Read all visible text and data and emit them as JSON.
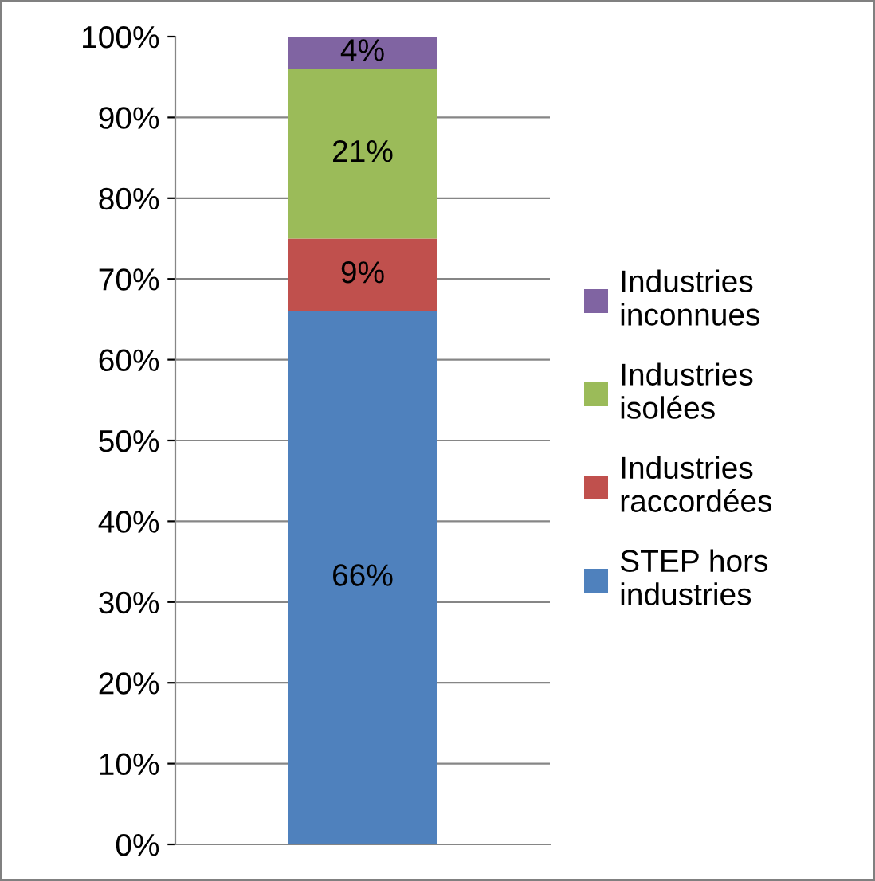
{
  "chart_data": {
    "type": "bar",
    "stacked": true,
    "categories": [
      null
    ],
    "series": [
      {
        "name": "STEP hors industries",
        "color": "#4f81bd",
        "values": [
          66
        ]
      },
      {
        "name": "Industries raccordées",
        "color": "#c0504d",
        "values": [
          9
        ]
      },
      {
        "name": "Industries isolées",
        "color": "#9bbb59",
        "values": [
          21
        ]
      },
      {
        "name": "Industries inconnues",
        "color": "#8064a2",
        "values": [
          4
        ]
      }
    ],
    "ylim": [
      0,
      100
    ],
    "yticks": [
      {
        "value": 0,
        "label": "0%"
      },
      {
        "value": 10,
        "label": "10%"
      },
      {
        "value": 20,
        "label": "20%"
      },
      {
        "value": 30,
        "label": "30%"
      },
      {
        "value": 40,
        "label": "40%"
      },
      {
        "value": 50,
        "label": "50%"
      },
      {
        "value": 60,
        "label": "60%"
      },
      {
        "value": 70,
        "label": "70%"
      },
      {
        "value": 80,
        "label": "80%"
      },
      {
        "value": 90,
        "label": "90%"
      },
      {
        "value": 100,
        "label": "100%"
      }
    ],
    "value_labels": [
      [
        "66%"
      ],
      [
        "9%"
      ],
      [
        "21%"
      ],
      [
        "4%"
      ]
    ],
    "grid": "y",
    "legend": "right"
  }
}
